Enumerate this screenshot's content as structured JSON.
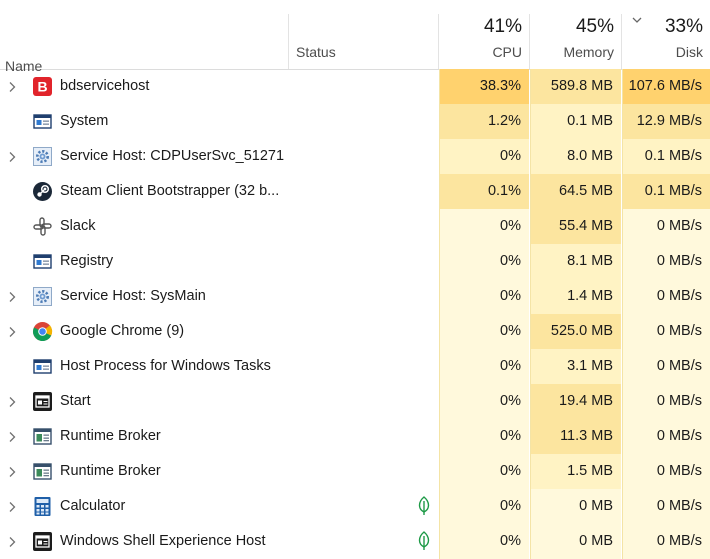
{
  "header": {
    "name_label": "Name",
    "status_label": "Status",
    "cpu_percent": "41%",
    "cpu_label": "CPU",
    "memory_percent": "45%",
    "memory_label": "Memory",
    "disk_percent": "33%",
    "disk_label": "Disk",
    "sorted_column": "Disk",
    "sort_direction": "descending"
  },
  "colors": {
    "heat_high": "#ffd26e",
    "heat_medium": "#fce59f",
    "heat_low": "#fff3c4",
    "heat_none": "#fff9dc",
    "eco_leaf": "#1e9a47"
  },
  "processes": [
    {
      "name": "bdservicehost",
      "icon": "bitdefender-icon",
      "expandable": true,
      "eco": false,
      "cpu": "38.3%",
      "memory": "589.8 MB",
      "disk": "107.6 MB/s",
      "cpu_level": "high",
      "memory_level": "medium",
      "disk_level": "high"
    },
    {
      "name": "System",
      "icon": "system-window-icon",
      "expandable": false,
      "eco": false,
      "cpu": "1.2%",
      "memory": "0.1 MB",
      "disk": "12.9 MB/s",
      "cpu_level": "medium",
      "memory_level": "low",
      "disk_level": "medium"
    },
    {
      "name": "Service Host: CDPUserSvc_51271",
      "icon": "gear-icon",
      "expandable": true,
      "eco": false,
      "cpu": "0%",
      "memory": "8.0 MB",
      "disk": "0.1 MB/s",
      "cpu_level": "low",
      "memory_level": "low",
      "disk_level": "low"
    },
    {
      "name": "Steam Client Bootstrapper (32 b...",
      "icon": "steam-icon",
      "expandable": false,
      "eco": false,
      "cpu": "0.1%",
      "memory": "64.5 MB",
      "disk": "0.1 MB/s",
      "cpu_level": "medium",
      "memory_level": "medium",
      "disk_level": "medium"
    },
    {
      "name": "Slack",
      "icon": "slack-icon",
      "expandable": false,
      "eco": false,
      "cpu": "0%",
      "memory": "55.4 MB",
      "disk": "0 MB/s",
      "cpu_level": "none",
      "memory_level": "medium",
      "disk_level": "none"
    },
    {
      "name": "Registry",
      "icon": "system-window-icon",
      "expandable": false,
      "eco": false,
      "cpu": "0%",
      "memory": "8.1 MB",
      "disk": "0 MB/s",
      "cpu_level": "none",
      "memory_level": "low",
      "disk_level": "none"
    },
    {
      "name": "Service Host: SysMain",
      "icon": "gear-icon",
      "expandable": true,
      "eco": false,
      "cpu": "0%",
      "memory": "1.4 MB",
      "disk": "0 MB/s",
      "cpu_level": "none",
      "memory_level": "low",
      "disk_level": "none"
    },
    {
      "name": "Google Chrome (9)",
      "icon": "chrome-icon",
      "expandable": true,
      "eco": false,
      "cpu": "0%",
      "memory": "525.0 MB",
      "disk": "0 MB/s",
      "cpu_level": "none",
      "memory_level": "medium",
      "disk_level": "none"
    },
    {
      "name": "Host Process for Windows Tasks",
      "icon": "system-window-icon",
      "expandable": false,
      "eco": false,
      "cpu": "0%",
      "memory": "3.1 MB",
      "disk": "0 MB/s",
      "cpu_level": "none",
      "memory_level": "low",
      "disk_level": "none"
    },
    {
      "name": "Start",
      "icon": "start-window-icon",
      "expandable": true,
      "eco": false,
      "cpu": "0%",
      "memory": "19.4 MB",
      "disk": "0 MB/s",
      "cpu_level": "none",
      "memory_level": "medium",
      "disk_level": "none"
    },
    {
      "name": "Runtime Broker",
      "icon": "runtime-broker-icon",
      "expandable": true,
      "eco": false,
      "cpu": "0%",
      "memory": "11.3 MB",
      "disk": "0 MB/s",
      "cpu_level": "none",
      "memory_level": "medium",
      "disk_level": "none"
    },
    {
      "name": "Runtime Broker",
      "icon": "runtime-broker-icon",
      "expandable": true,
      "eco": false,
      "cpu": "0%",
      "memory": "1.5 MB",
      "disk": "0 MB/s",
      "cpu_level": "none",
      "memory_level": "low",
      "disk_level": "none"
    },
    {
      "name": "Calculator",
      "icon": "calculator-icon",
      "expandable": true,
      "eco": true,
      "cpu": "0%",
      "memory": "0 MB",
      "disk": "0 MB/s",
      "cpu_level": "none",
      "memory_level": "none",
      "disk_level": "none"
    },
    {
      "name": "Windows Shell Experience Host",
      "icon": "start-window-icon",
      "expandable": true,
      "eco": true,
      "cpu": "0%",
      "memory": "0 MB",
      "disk": "0 MB/s",
      "cpu_level": "none",
      "memory_level": "none",
      "disk_level": "none"
    }
  ]
}
